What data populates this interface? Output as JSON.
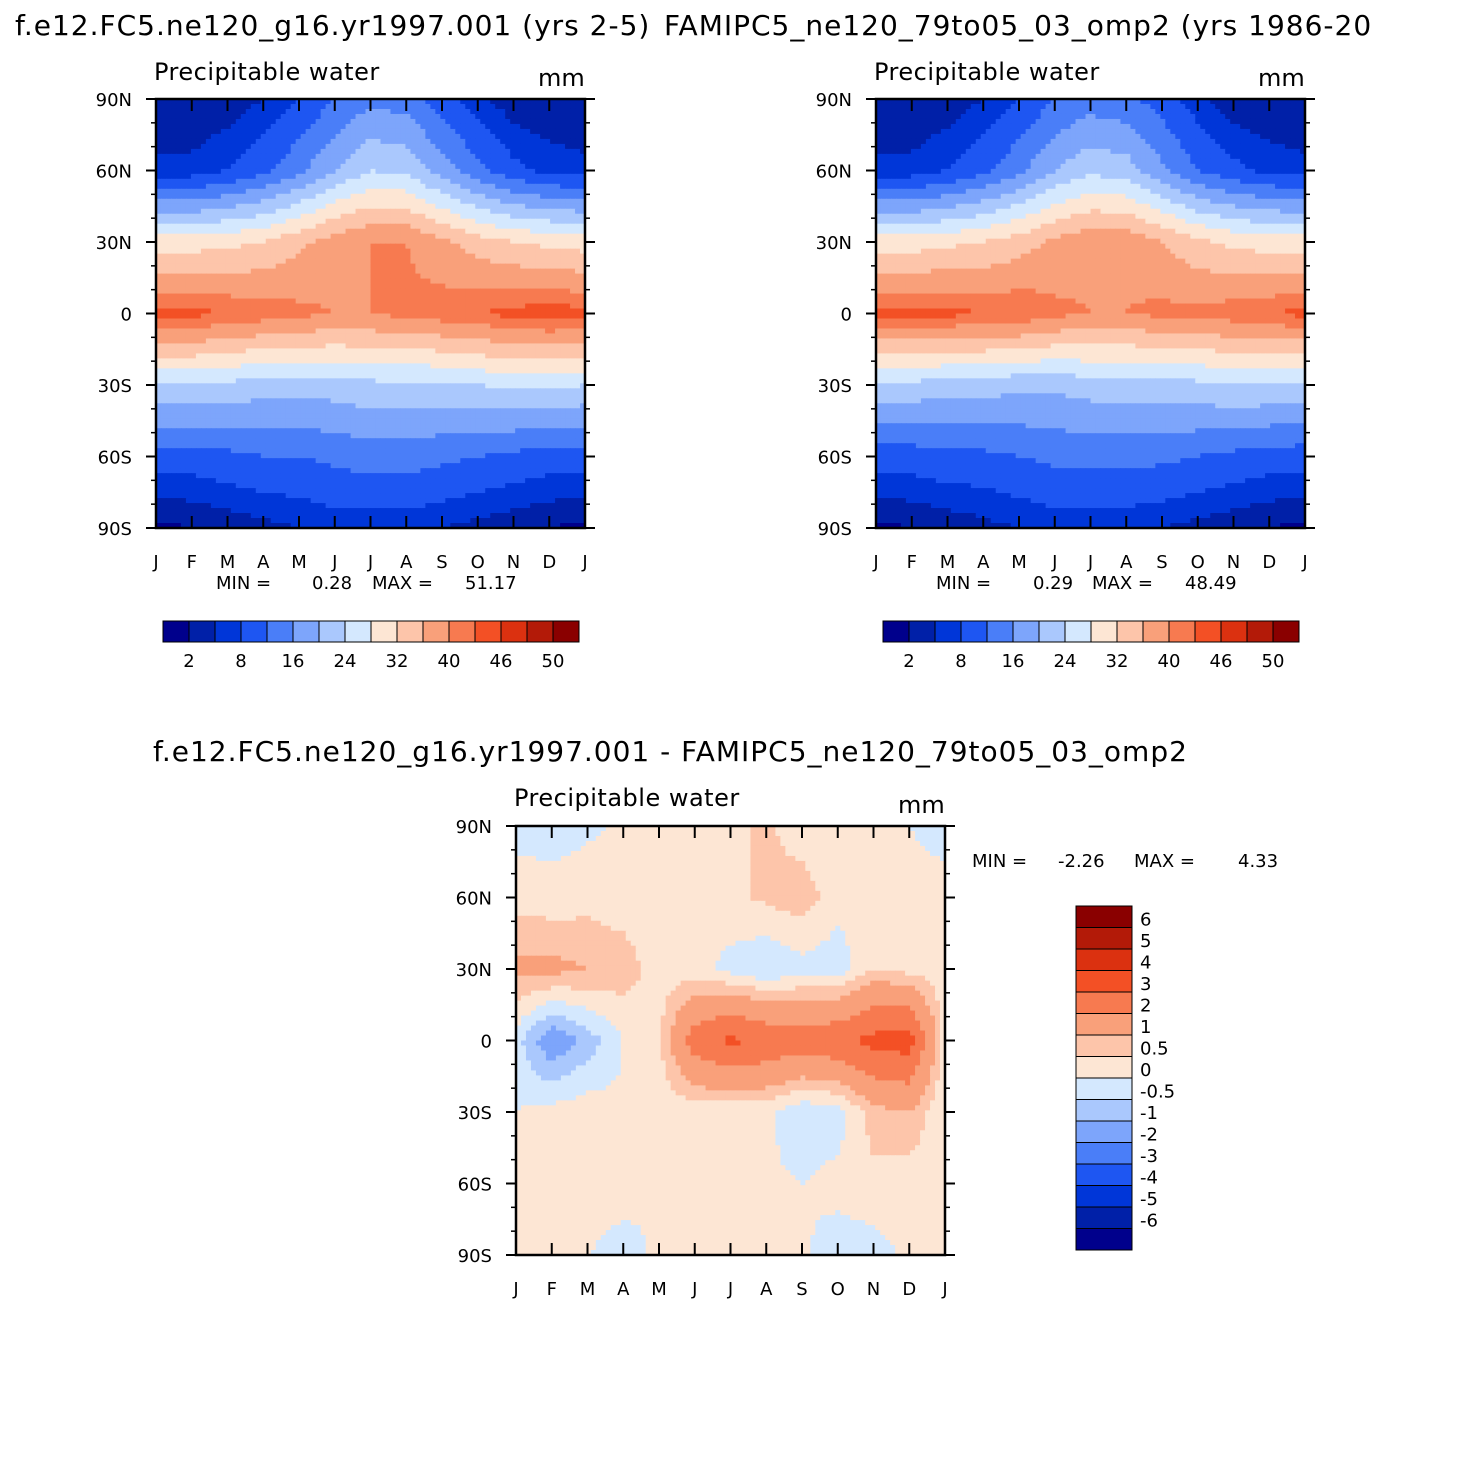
{
  "panels": [
    {
      "title": "f.e12.FC5.ne120_g16.yr1997.001 (yrs 2-5)",
      "variable": "Precipitable water",
      "units": "mm",
      "min_label": "MIN =",
      "min_value": "0.28",
      "max_label": "MAX =",
      "max_value": "51.17",
      "colorbar_labels": [
        "2",
        "8",
        "16",
        "24",
        "32",
        "40",
        "46",
        "50"
      ]
    },
    {
      "title": "FAMIPC5_ne120_79to05_03_omp2 (yrs 1986-20",
      "variable": "Precipitable water",
      "units": "mm",
      "min_label": "MIN =",
      "min_value": "0.29",
      "max_label": "MAX =",
      "max_value": "48.49",
      "colorbar_labels": [
        "2",
        "8",
        "16",
        "24",
        "32",
        "40",
        "46",
        "50"
      ]
    },
    {
      "title": "f.e12.FC5.ne120_g16.yr1997.001 - FAMIPC5_ne120_79to05_03_omp2",
      "variable": "Precipitable water",
      "units": "mm",
      "min_label": "MIN =",
      "min_value": "-2.26",
      "max_label": "MAX =",
      "max_value": "4.33",
      "colorbar_labels": [
        "6",
        "5",
        "4",
        "3",
        "2",
        "1",
        "0.5",
        "0",
        "-0.5",
        "-1",
        "-2",
        "-3",
        "-4",
        "-5",
        "-6"
      ]
    }
  ],
  "axes": {
    "x_ticks": [
      "J",
      "F",
      "M",
      "A",
      "M",
      "J",
      "J",
      "A",
      "S",
      "O",
      "N",
      "D",
      "J"
    ],
    "y_ticks": [
      "90N",
      "60N",
      "30N",
      "0",
      "30S",
      "60S",
      "90S"
    ]
  },
  "colors": {
    "abs_palette": [
      "#00008c",
      "#0020a8",
      "#0036d8",
      "#1e56f2",
      "#4a7ef8",
      "#7da5fb",
      "#aac8fd",
      "#d4e8fe",
      "#fde6d4",
      "#fdc5aa",
      "#f9a07a",
      "#f77a50",
      "#f35025",
      "#db3110",
      "#b31a08",
      "#8a0000"
    ],
    "diff_palette": [
      "#00008c",
      "#0020a8",
      "#0036d8",
      "#1e56f2",
      "#4a7ef8",
      "#7da5fb",
      "#aac8fd",
      "#d4e8fe",
      "#fde6d4",
      "#fdc5aa",
      "#f9a07a",
      "#f77a50",
      "#f35025",
      "#db3110",
      "#b31a08",
      "#8a0000"
    ]
  },
  "chart_data": [
    {
      "type": "heatmap",
      "title": "f.e12.FC5.ne120_g16.yr1997.001 (yrs 2-5)",
      "subtitle": "Precipitable water",
      "units": "mm",
      "x": [
        "J",
        "F",
        "M",
        "A",
        "M",
        "J",
        "J",
        "A",
        "S",
        "O",
        "N",
        "D",
        "J"
      ],
      "y": [
        -90,
        -60,
        -30,
        0,
        30,
        60,
        90
      ],
      "values": [
        [
          1,
          2,
          3,
          4,
          5,
          6,
          6,
          6,
          5,
          4,
          3,
          2,
          1
        ],
        [
          10,
          10,
          11,
          12,
          12,
          13,
          14,
          14,
          13,
          12,
          11,
          10,
          10
        ],
        [
          24,
          24,
          23,
          22,
          22,
          22,
          23,
          23,
          23,
          24,
          25,
          25,
          24
        ],
        [
          44,
          44,
          43,
          42,
          41,
          40,
          40,
          41,
          42,
          43,
          44,
          45,
          44
        ],
        [
          30,
          30,
          31,
          32,
          35,
          38,
          40,
          40,
          37,
          34,
          32,
          31,
          30
        ],
        [
          6,
          6,
          8,
          11,
          15,
          20,
          24,
          23,
          18,
          13,
          9,
          7,
          6
        ],
        [
          2,
          2,
          3,
          5,
          8,
          12,
          15,
          14,
          10,
          6,
          3,
          2,
          2
        ]
      ],
      "levels": [
        2,
        5,
        8,
        12,
        16,
        20,
        24,
        28,
        32,
        36,
        40,
        43,
        46,
        48,
        50
      ],
      "min": 0.28,
      "max": 51.17
    },
    {
      "type": "heatmap",
      "title": "FAMIPC5_ne120_79to05_03_omp2 (yrs 1986-20",
      "subtitle": "Precipitable water",
      "units": "mm",
      "x": [
        "J",
        "F",
        "M",
        "A",
        "M",
        "J",
        "J",
        "A",
        "S",
        "O",
        "N",
        "D",
        "J"
      ],
      "y": [
        -90,
        -60,
        -30,
        0,
        30,
        60,
        90
      ],
      "values": [
        [
          1,
          2,
          3,
          4,
          5,
          6,
          6,
          6,
          5,
          4,
          3,
          2,
          1
        ],
        [
          10,
          10,
          11,
          11,
          12,
          13,
          13,
          13,
          13,
          12,
          11,
          10,
          10
        ],
        [
          23,
          23,
          22,
          22,
          21,
          21,
          22,
          22,
          22,
          23,
          24,
          24,
          23
        ],
        [
          44,
          44,
          44,
          43,
          43,
          41,
          40,
          40,
          41,
          41,
          42,
          43,
          44
        ],
        [
          30,
          30,
          31,
          32,
          34,
          37,
          39,
          39,
          36,
          33,
          31,
          30,
          30
        ],
        [
          6,
          6,
          8,
          11,
          15,
          20,
          23,
          22,
          17,
          12,
          9,
          7,
          6
        ],
        [
          2,
          2,
          3,
          5,
          8,
          12,
          14,
          13,
          10,
          6,
          3,
          2,
          2
        ]
      ],
      "levels": [
        2,
        5,
        8,
        12,
        16,
        20,
        24,
        28,
        32,
        36,
        40,
        43,
        46,
        48,
        50
      ],
      "min": 0.29,
      "max": 48.49
    },
    {
      "type": "heatmap",
      "title": "f.e12.FC5.ne120_g16.yr1997.001 - FAMIPC5_ne120_79to05_03_omp2",
      "subtitle": "Precipitable water",
      "units": "mm",
      "x": [
        "J",
        "F",
        "M",
        "A",
        "M",
        "J",
        "J",
        "A",
        "S",
        "O",
        "N",
        "D",
        "J"
      ],
      "y": [
        -90,
        -60,
        -30,
        0,
        30,
        60,
        90
      ],
      "values": [
        [
          0.2,
          0.1,
          0.0,
          -0.2,
          0.1,
          0.0,
          0.2,
          0.3,
          0.1,
          -0.3,
          -0.2,
          0.1,
          0.2
        ],
        [
          0.1,
          0.2,
          0.3,
          0.2,
          0.0,
          0.1,
          0.2,
          0.1,
          0.0,
          0.2,
          0.3,
          0.2,
          0.1
        ],
        [
          0.0,
          0.2,
          0.3,
          0.1,
          0.1,
          0.2,
          0.0,
          0.1,
          -0.4,
          -0.3,
          0.8,
          1.0,
          0.0
        ],
        [
          -0.3,
          -1.5,
          -0.8,
          0.0,
          0.4,
          2.5,
          3.2,
          2.8,
          2.5,
          2.8,
          3.3,
          3.5,
          0.2
        ],
        [
          1.2,
          1.2,
          1.0,
          0.8,
          0.2,
          0.2,
          -0.2,
          -0.5,
          -0.2,
          -0.3,
          0.5,
          0.3,
          0.2
        ],
        [
          0.3,
          0.2,
          0.3,
          0.2,
          0.2,
          0.4,
          0.4,
          0.6,
          0.8,
          0.2,
          0.1,
          0.2,
          0.2
        ],
        [
          -0.2,
          -0.2,
          -0.1,
          0.1,
          0.2,
          0.2,
          0.4,
          0.6,
          0.2,
          0.0,
          0.0,
          0.0,
          -0.2
        ]
      ],
      "levels": [
        -6,
        -5,
        -4,
        -3,
        -2,
        -1,
        -0.5,
        0,
        0.5,
        1,
        2,
        3,
        4,
        5,
        6
      ],
      "min": -2.26,
      "max": 4.33
    }
  ]
}
